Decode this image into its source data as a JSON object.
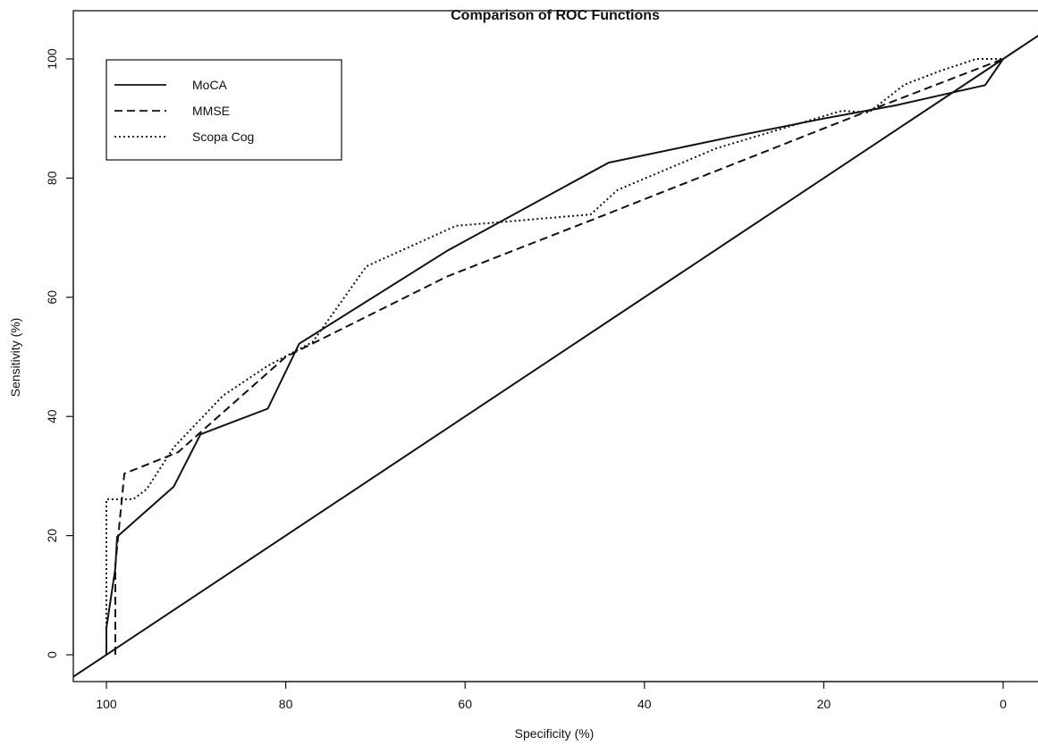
{
  "chart_data": {
    "type": "line",
    "title": "Comparison of ROC Functions",
    "xlabel": "Specificity (%)",
    "ylabel": "Sensitivity (%)",
    "xlim": [
      100,
      0
    ],
    "ylim": [
      0,
      100
    ],
    "x_ticks": [
      "100",
      "80",
      "60",
      "40",
      "20",
      "0"
    ],
    "y_ticks": [
      "0",
      "20",
      "40",
      "60",
      "80",
      "100"
    ],
    "grid": false,
    "legend_position": "top-left",
    "reference_line": {
      "x": [
        104,
        -4
      ],
      "y": [
        -4,
        104
      ]
    },
    "series": [
      {
        "name": "MoCA",
        "line_style": "solid",
        "x": [
          100,
          100,
          99,
          98.8,
          92.5,
          89.5,
          82,
          78.5,
          62,
          44,
          30,
          20,
          12,
          2,
          0
        ],
        "y": [
          0,
          4.5,
          14.5,
          19.8,
          28.2,
          37.0,
          41.3,
          52.2,
          67.8,
          82.6,
          87.0,
          90.0,
          92.2,
          95.6,
          100
        ]
      },
      {
        "name": "MMSE",
        "line_style": "dashed",
        "x": [
          99,
          99,
          98,
          92,
          80,
          62,
          45,
          15,
          0
        ],
        "y": [
          0,
          15,
          30.4,
          34,
          50,
          63.5,
          73.5,
          91.3,
          100
        ]
      },
      {
        "name": "Scopa Cog",
        "line_style": "dotted",
        "x": [
          100,
          100,
          97,
          95.5,
          92.5,
          87,
          82,
          77,
          71,
          61,
          46,
          43,
          32,
          18,
          15,
          11,
          7,
          3,
          0
        ],
        "y": [
          0,
          26.1,
          26.1,
          27.8,
          34.8,
          43.5,
          48.5,
          52.5,
          65.2,
          72.0,
          73.9,
          78.0,
          85.0,
          91.3,
          91.0,
          95.7,
          98.0,
          100,
          100
        ]
      }
    ]
  }
}
